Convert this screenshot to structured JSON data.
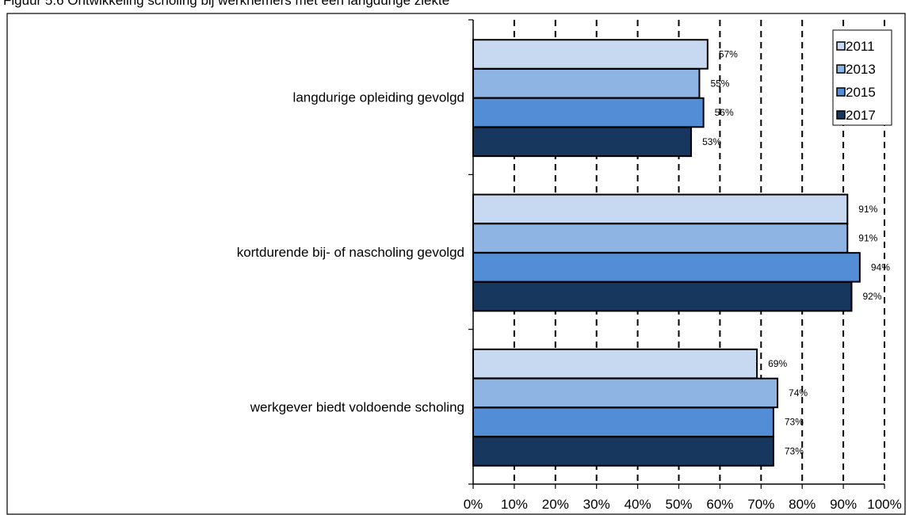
{
  "header": {
    "cut_title": "Figuur 5.6 Ontwikkeling scholing bij werknemers met een langdurige ziekte"
  },
  "chart_data": {
    "type": "bar",
    "orientation": "horizontal",
    "categories": [
      "langdurige opleiding gevolgd",
      "kortdurende bij- of nascholing gevolgd",
      "werkgever biedt voldoende scholing"
    ],
    "series": [
      {
        "name": "2011",
        "color": "#c6d9f1",
        "values": [
          57,
          91,
          69
        ],
        "labels": [
          "57%",
          "91%",
          "69%"
        ]
      },
      {
        "name": "2013",
        "color": "#8db4e2",
        "values": [
          55,
          91,
          74
        ],
        "labels": [
          "55%",
          "91%",
          "74%"
        ]
      },
      {
        "name": "2015",
        "color": "#538dd5",
        "values": [
          56,
          94,
          73
        ],
        "labels": [
          "56%",
          "94%",
          "73%"
        ]
      },
      {
        "name": "2017",
        "color": "#17375e",
        "values": [
          53,
          92,
          73
        ],
        "labels": [
          "53%",
          "92%",
          "73%"
        ]
      }
    ],
    "x_ticks": [
      "0%",
      "10%",
      "20%",
      "30%",
      "40%",
      "50%",
      "60%",
      "70%",
      "80%",
      "90%",
      "100%"
    ],
    "xlim": [
      0,
      100
    ],
    "grid": "vertical dashed",
    "legend_position": "top-right"
  }
}
